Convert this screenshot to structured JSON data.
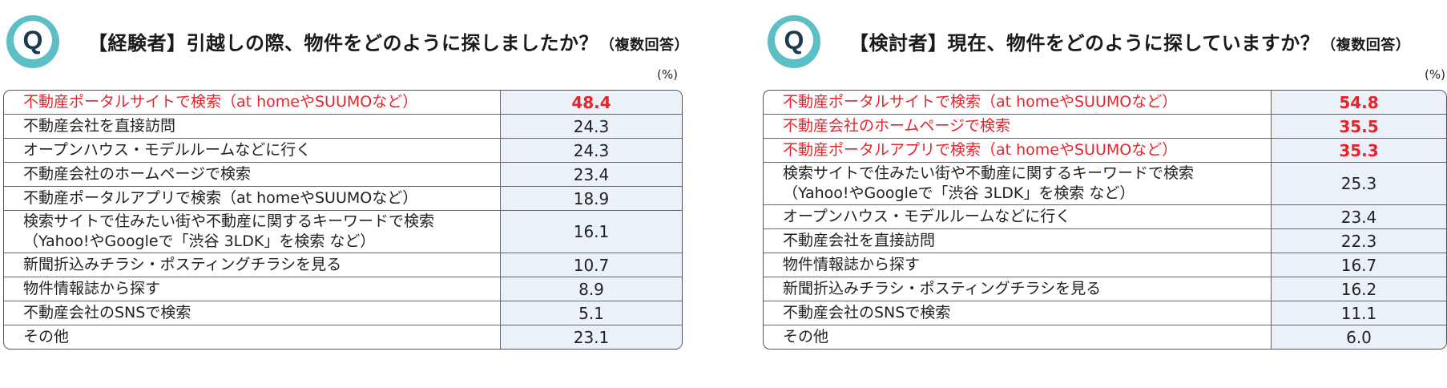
{
  "chart_data": [
    {
      "type": "table",
      "title": "【経験者】引越しの際、物件をどのように探しましたか？",
      "subtitle": "（複数回答）",
      "unit": "(%)",
      "rows": [
        {
          "label": [
            "不動産ポータルサイトで検索（at homeやSUUMOなど）"
          ],
          "value": "48.4",
          "highlight": true
        },
        {
          "label": [
            "不動産会社を直接訪問"
          ],
          "value": "24.3",
          "highlight": false
        },
        {
          "label": [
            "オープンハウス・モデルルームなどに行く"
          ],
          "value": "24.3",
          "highlight": false
        },
        {
          "label": [
            "不動産会社のホームページで検索"
          ],
          "value": "23.4",
          "highlight": false
        },
        {
          "label": [
            "不動産ポータルアプリで検索（at homeやSUUMOなど）"
          ],
          "value": "18.9",
          "highlight": false
        },
        {
          "label": [
            "検索サイトで住みたい街や不動産に関するキーワードで検索",
            "（Yahoo!やGoogleで「渋谷 3LDK」を検索 など）"
          ],
          "value": "16.1",
          "highlight": false
        },
        {
          "label": [
            "新聞折込みチラシ・ポスティングチラシを見る"
          ],
          "value": "10.7",
          "highlight": false
        },
        {
          "label": [
            "物件情報誌から探す"
          ],
          "value": "8.9",
          "highlight": false
        },
        {
          "label": [
            "不動産会社のSNSで検索"
          ],
          "value": "5.1",
          "highlight": false
        },
        {
          "label": [
            "その他"
          ],
          "value": "23.1",
          "highlight": false
        }
      ]
    },
    {
      "type": "table",
      "title": "【検討者】現在、物件をどのように探していますか？",
      "subtitle": "（複数回答）",
      "unit": "(%)",
      "rows": [
        {
          "label": [
            "不動産ポータルサイトで検索（at homeやSUUMOなど）"
          ],
          "value": "54.8",
          "highlight": true
        },
        {
          "label": [
            "不動産会社のホームページで検索"
          ],
          "value": "35.5",
          "highlight": true
        },
        {
          "label": [
            "不動産ポータルアプリで検索（at homeやSUUMOなど）"
          ],
          "value": "35.3",
          "highlight": true
        },
        {
          "label": [
            "検索サイトで住みたい街や不動産に関するキーワードで検索",
            "（Yahoo!やGoogleで「渋谷 3LDK」を検索 など）"
          ],
          "value": "25.3",
          "highlight": false
        },
        {
          "label": [
            "オープンハウス・モデルルームなどに行く"
          ],
          "value": "23.4",
          "highlight": false
        },
        {
          "label": [
            "不動産会社を直接訪問"
          ],
          "value": "22.3",
          "highlight": false
        },
        {
          "label": [
            "物件情報誌から探す"
          ],
          "value": "16.7",
          "highlight": false
        },
        {
          "label": [
            "新聞折込みチラシ・ポスティングチラシを見る"
          ],
          "value": "16.2",
          "highlight": false
        },
        {
          "label": [
            "不動産会社のSNSで検索"
          ],
          "value": "11.1",
          "highlight": false
        },
        {
          "label": [
            "その他"
          ],
          "value": "6.0",
          "highlight": false
        }
      ]
    }
  ],
  "badge": {
    "letter": "Q",
    "icon": "q-badge-icon"
  },
  "colors": {
    "highlight": "#e8232b",
    "value_bg": "#eaf1f8",
    "badge_teal": "#5bbfc5"
  }
}
